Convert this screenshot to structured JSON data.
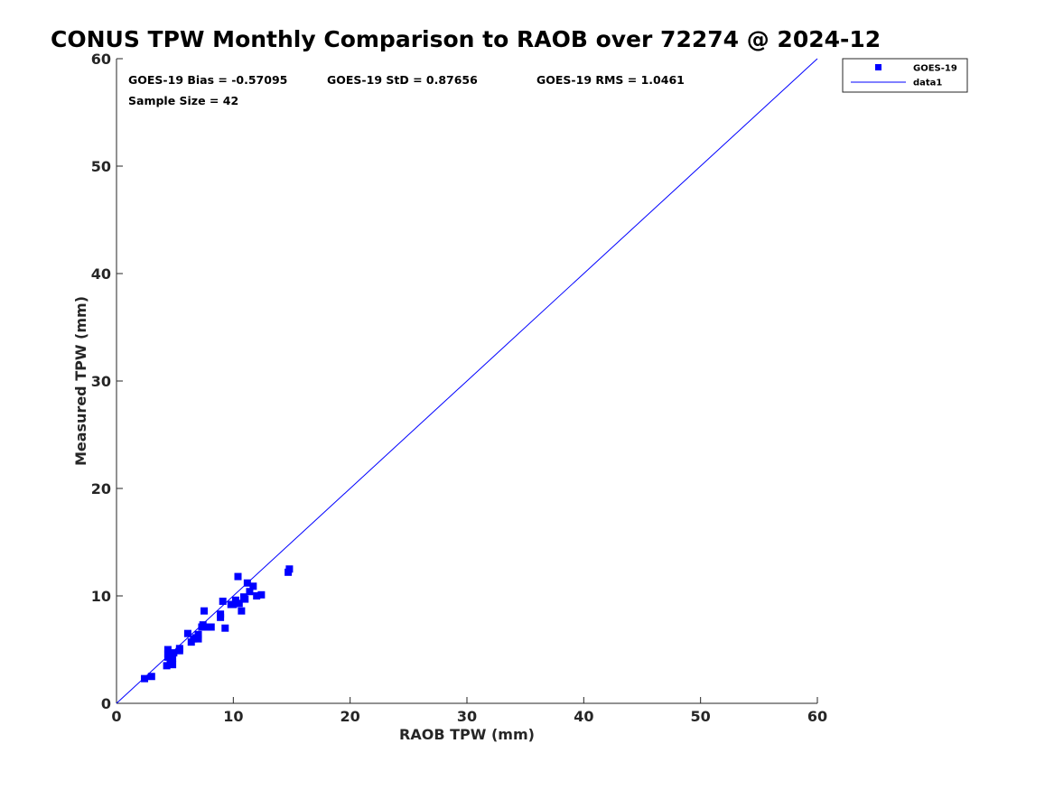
{
  "chart_data": {
    "type": "scatter",
    "title": "CONUS TPW Monthly Comparison to RAOB over 72274 @ 2024-12",
    "xlabel": "RAOB TPW (mm)",
    "ylabel": "Measured TPW (mm)",
    "xlim": [
      0,
      60
    ],
    "ylim": [
      0,
      60
    ],
    "xticks": [
      "0",
      "10",
      "20",
      "30",
      "40",
      "50",
      "60"
    ],
    "yticks": [
      "0",
      "10",
      "20",
      "30",
      "40",
      "50",
      "60"
    ],
    "grid": false,
    "legend_position": "outside-top-right",
    "stats": {
      "bias": "GOES-19 Bias = -0.57095",
      "std": "GOES-19 StD = 0.87656",
      "rms": "GOES-19 RMS = 1.0461",
      "sample_size": "Sample Size = 42"
    },
    "series": [
      {
        "name": "GOES-19",
        "type": "scatter",
        "marker": "square",
        "color": "#0000ff",
        "points": [
          [
            2.4,
            2.3
          ],
          [
            3.0,
            2.5
          ],
          [
            4.3,
            3.5
          ],
          [
            4.6,
            3.8
          ],
          [
            4.8,
            3.6
          ],
          [
            4.8,
            4.2
          ],
          [
            4.4,
            4.3
          ],
          [
            4.4,
            4.6
          ],
          [
            4.4,
            5.0
          ],
          [
            4.9,
            4.7
          ],
          [
            5.4,
            4.9
          ],
          [
            5.4,
            5.1
          ],
          [
            6.1,
            6.5
          ],
          [
            6.4,
            5.7
          ],
          [
            6.6,
            6.0
          ],
          [
            6.8,
            6.1
          ],
          [
            7.0,
            6.0
          ],
          [
            7.0,
            6.4
          ],
          [
            7.3,
            7.1
          ],
          [
            7.4,
            7.3
          ],
          [
            7.5,
            8.6
          ],
          [
            7.8,
            7.1
          ],
          [
            8.1,
            7.1
          ],
          [
            8.9,
            8.0
          ],
          [
            8.9,
            8.3
          ],
          [
            9.1,
            9.5
          ],
          [
            9.3,
            7.0
          ],
          [
            9.8,
            9.2
          ],
          [
            10.2,
            9.6
          ],
          [
            10.4,
            11.8
          ],
          [
            10.5,
            9.3
          ],
          [
            10.7,
            8.6
          ],
          [
            10.9,
            9.9
          ],
          [
            11.0,
            9.7
          ],
          [
            11.2,
            11.2
          ],
          [
            11.4,
            10.4
          ],
          [
            11.7,
            10.9
          ],
          [
            12.0,
            10.0
          ],
          [
            12.4,
            10.1
          ],
          [
            14.7,
            12.2
          ],
          [
            14.8,
            12.5
          ],
          [
            10.0,
            9.2
          ]
        ]
      },
      {
        "name": "data1",
        "type": "line",
        "color": "#0000ff",
        "points": [
          [
            0,
            0
          ],
          [
            60,
            60
          ]
        ]
      }
    ]
  }
}
